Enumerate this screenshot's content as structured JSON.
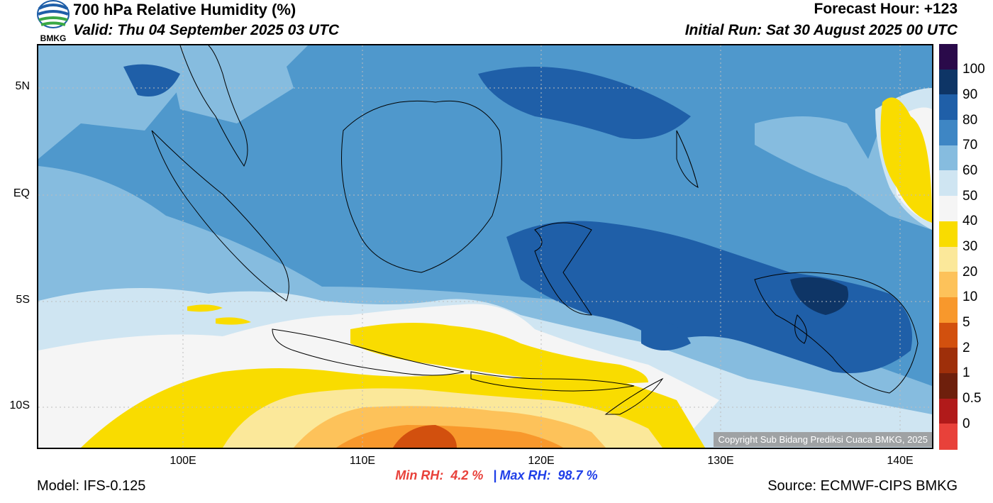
{
  "header": {
    "title": "700 hPa Relative Humidity (%)",
    "valid": "Valid: Thu 04 September 2025 03 UTC",
    "forecast_hour": "Forecast Hour: +123",
    "initial_run": "Initial Run: Sat 30 August 2025 00 UTC"
  },
  "logo": {
    "text": "BMKG",
    "icon": "bmkg-logo-icon"
  },
  "colorbar": {
    "labels": [
      "100",
      "90",
      "80",
      "70",
      "60",
      "50",
      "40",
      "30",
      "20",
      "10",
      "5",
      "2",
      "1",
      "0.5",
      "0"
    ],
    "colors": [
      "#2a0a4a",
      "#0e3566",
      "#1f5fa8",
      "#3e86c4",
      "#86bcdf",
      "#cfe5f2",
      "#f5f5f5",
      "#f9dc00",
      "#fbe89a",
      "#fdc25a",
      "#f8982c",
      "#d2500e",
      "#9e2f0a",
      "#6e1f0c",
      "#b11a1a",
      "#e8413a"
    ]
  },
  "axes": {
    "lat_labels": [
      "5N",
      "EQ",
      "5S",
      "10S"
    ],
    "lon_labels": [
      "100E",
      "110E",
      "120E",
      "130E",
      "140E"
    ]
  },
  "stats": {
    "min_label": "Min RH:",
    "min_value": "4.2 %",
    "separator": "|",
    "max_label": "Max RH:",
    "max_value": "98.7 %"
  },
  "footer": {
    "model": "Model: IFS-0.125",
    "source": "Source: ECMWF-CIPS BMKG",
    "copyright": "Copyright Sub Bidang Prediksi Cuaca BMKG, 2025"
  }
}
